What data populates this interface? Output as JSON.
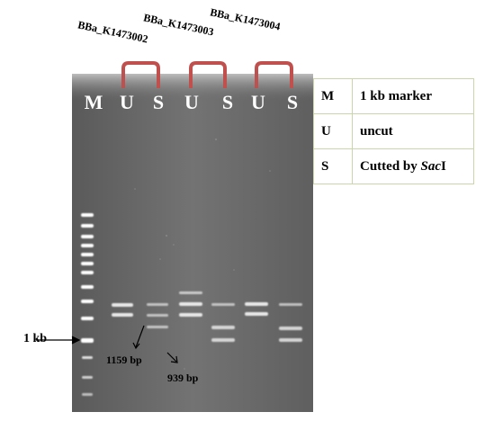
{
  "constructs": [
    {
      "label": "BBa_K1473002"
    },
    {
      "label": "BBa_K1473003"
    },
    {
      "label": "BBa_K1473004"
    }
  ],
  "lane_labels": [
    "M",
    "U",
    "S",
    "U",
    "S",
    "U",
    "S"
  ],
  "legend": [
    {
      "key": "M",
      "text": "1 kb marker"
    },
    {
      "key": "U",
      "text": "uncut"
    },
    {
      "key": "S",
      "text_prefix": "Cutted by ",
      "text_italic": "Sac",
      "text_suffix": "I"
    }
  ],
  "annotations": {
    "marker_1kb": "1 kb",
    "band_1": "1159 bp",
    "band_2": "939 bp"
  },
  "colors": {
    "gel_background": "#6b6b6b",
    "bracket": "#c0504d",
    "legend_border": "#c9d6a9",
    "band": "#ffffff"
  }
}
